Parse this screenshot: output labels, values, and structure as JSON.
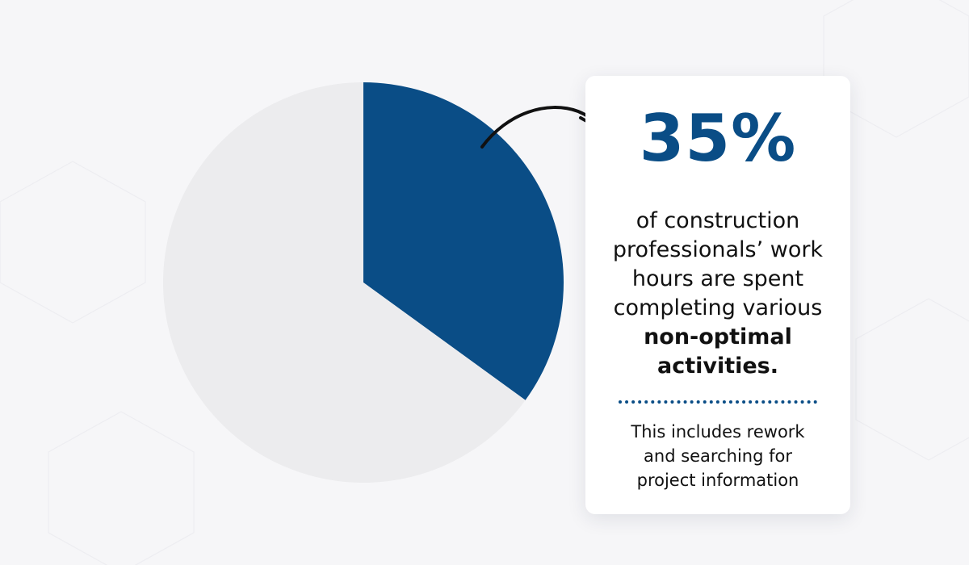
{
  "chart_data": {
    "type": "pie",
    "values": [
      35,
      65
    ],
    "slice_colors": [
      "#0a4d86",
      "#ececee"
    ],
    "highlighted_label": "35%"
  },
  "callout": {
    "percent": "35%",
    "text_before": "of construction professionals’ work hours are spent completing various",
    "text_bold": "non-optimal activities.",
    "note": "This includes rework and searching for project information"
  },
  "colors": {
    "accent": "#0a4d86",
    "background": "#f6f6f8",
    "pie_remainder": "#ececee"
  }
}
